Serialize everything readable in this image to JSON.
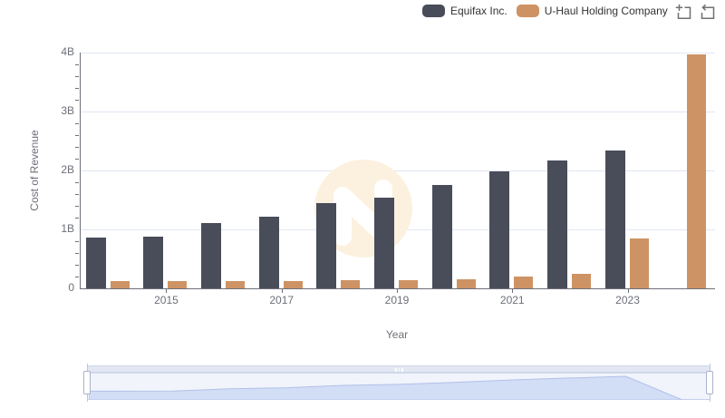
{
  "legend": {
    "items": [
      {
        "label": "Equifax Inc.",
        "color": "#494c59"
      },
      {
        "label": "U-Haul Holding Company",
        "color": "#ce9364"
      }
    ]
  },
  "toolbox": {
    "icons": [
      {
        "name": "data-zoom-icon"
      },
      {
        "name": "restore-icon"
      }
    ],
    "icon_color": "#707070"
  },
  "chart_data": {
    "type": "bar",
    "title": "",
    "xlabel": "Year",
    "ylabel": "Cost of Revenue",
    "unit": "billions USD",
    "categories": [
      "2014",
      "2015",
      "2016",
      "2017",
      "2018",
      "2019",
      "2020",
      "2021",
      "2022",
      "2023",
      "2024"
    ],
    "x_tick_labels": [
      "2015",
      "2017",
      "2019",
      "2021",
      "2023"
    ],
    "y_tick_labels": [
      "0",
      "1B",
      "2B",
      "3B",
      "4B"
    ],
    "ylim_b": [
      0,
      4
    ],
    "grid": true,
    "legend_position": "top-right",
    "series": [
      {
        "name": "Equifax Inc.",
        "color": "#494c59",
        "values_b": [
          0.86,
          0.88,
          1.11,
          1.21,
          1.44,
          1.54,
          1.75,
          1.98,
          2.17,
          2.34,
          null
        ]
      },
      {
        "name": "U-Haul Holding Company",
        "color": "#ce9364",
        "values_b": [
          0.12,
          0.13,
          0.13,
          0.13,
          0.14,
          0.14,
          0.15,
          0.2,
          0.24,
          0.84,
          3.97
        ]
      }
    ]
  },
  "datazoom": {
    "range_pct": [
      0,
      100
    ],
    "shadow_fill": "#d2ddf6",
    "shadow_line": "#b2c1e8"
  },
  "watermark": {
    "circle_color": "#fcf1df",
    "glyph": "n-logo",
    "glyph_color": "#ffffff"
  }
}
